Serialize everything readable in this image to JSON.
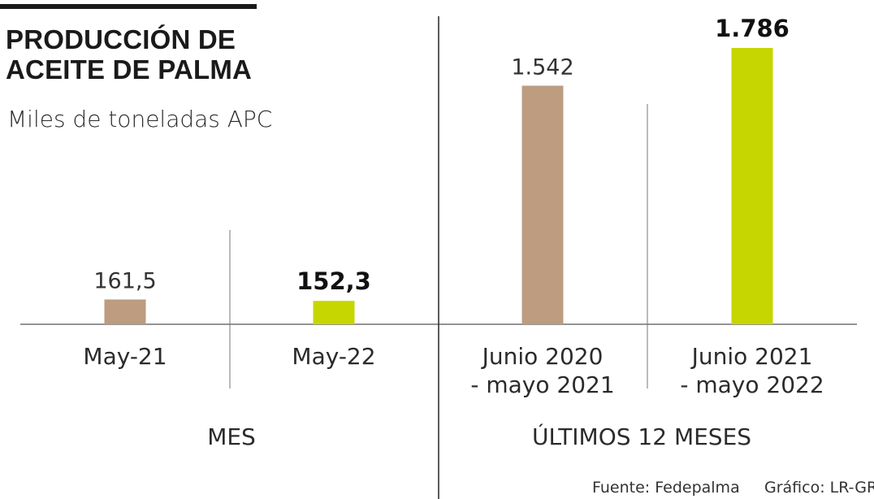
{
  "header": {
    "title_line1": "PRODUCCIÓN DE",
    "title_line2": "ACEITE DE PALMA",
    "subtitle": "Miles de toneladas APC"
  },
  "chart_data": {
    "type": "bar",
    "unit": "Miles de toneladas APC",
    "groups": [
      {
        "label": "MES",
        "categories": [
          [
            "May-21"
          ],
          [
            "May-22"
          ]
        ],
        "values": [
          161.5,
          152.3
        ],
        "value_labels": [
          "161,5",
          "152,3"
        ],
        "colors": [
          "#bd9c80",
          "#c6d600"
        ],
        "bold": [
          false,
          true
        ],
        "ylim": [
          0,
          1800
        ]
      },
      {
        "label": "ÚLTIMOS 12 MESES",
        "categories": [
          [
            "Junio 2020",
            "- mayo 2021"
          ],
          [
            "Junio 2021",
            "- mayo 2022"
          ]
        ],
        "values": [
          1542,
          1786
        ],
        "value_labels": [
          "1.542",
          "1.786"
        ],
        "colors": [
          "#bd9c80",
          "#c6d600"
        ],
        "bold": [
          false,
          true
        ],
        "ylim": [
          0,
          1786
        ]
      }
    ]
  },
  "footer": {
    "source": "Fuente: Fedepalma",
    "credit": "Gráfico: LR-GR"
  }
}
